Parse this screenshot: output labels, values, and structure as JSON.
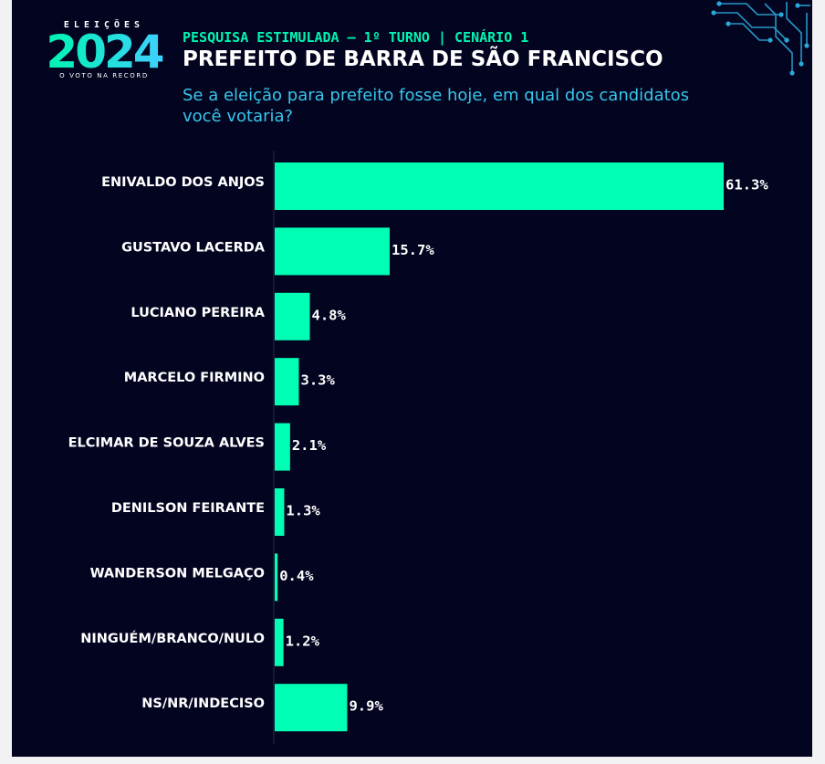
{
  "logo": {
    "top": "ELEIÇÕES",
    "year": "2024",
    "bottom": "O VOTO NA RECORD",
    "accent": "#00f5b0"
  },
  "header": {
    "kicker": "PESQUISA ESTIMULADA — 1º TURNO | CENÁRIO 1",
    "title": "PREFEITO DE BARRA DE SÃO FRANCISCO",
    "question": "Se a eleição para prefeito fosse hoje, em qual dos candidatos você votaria?"
  },
  "colors": {
    "background": "#020420",
    "bar": "#00ffb4",
    "kicker": "#00f5b0",
    "question": "#39c6ea"
  },
  "chart_data": {
    "type": "bar",
    "orientation": "horizontal",
    "categories": [
      "ENIVALDO DOS ANJOS",
      "GUSTAVO LACERDA",
      "LUCIANO PEREIRA",
      "MARCELO FIRMINO",
      "ELCIMAR DE SOUZA ALVES",
      "DENILSON FEIRANTE",
      "WANDERSON MELGAÇO",
      "NINGUÉM/BRANCO/NULO",
      "NS/NR/INDECISO"
    ],
    "values": [
      61.3,
      15.7,
      4.8,
      3.3,
      2.1,
      1.3,
      0.4,
      1.2,
      9.9
    ],
    "value_labels": [
      "61.3%",
      "15.7%",
      "4.8%",
      "3.3%",
      "2.1%",
      "1.3%",
      "0.4%",
      "1.2%",
      "9.9%"
    ],
    "title": "",
    "xlabel": "",
    "ylabel": "",
    "xlim": [
      0,
      61.3
    ],
    "grid": false,
    "legend": "none"
  }
}
